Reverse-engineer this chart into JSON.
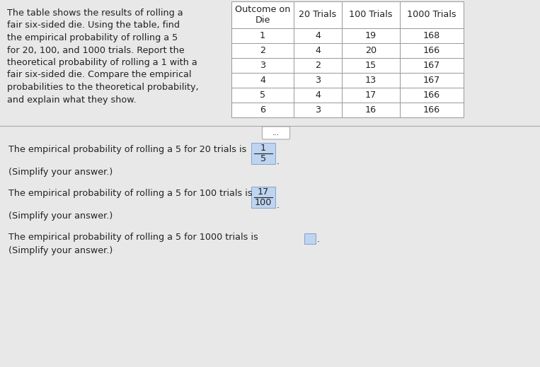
{
  "bg_color": "#e8e8e8",
  "left_text_lines": [
    "The table shows the results of rolling a",
    "fair six-sided die. Using the table, find",
    "the empirical probability of rolling a 5",
    "for 20, 100, and 1000 trials. Report the",
    "theoretical probability of rolling a 1 with a",
    "fair six-sided die. Compare the empirical",
    "probabilities to the theoretical probability,",
    "and explain what they show."
  ],
  "table_headers": [
    "Outcome on\nDie",
    "20 Trials",
    "100 Trials",
    "1000 Trials"
  ],
  "table_rows": [
    [
      "1",
      "4",
      "19",
      "168"
    ],
    [
      "2",
      "4",
      "20",
      "166"
    ],
    [
      "3",
      "2",
      "15",
      "167"
    ],
    [
      "4",
      "3",
      "13",
      "167"
    ],
    [
      "5",
      "4",
      "17",
      "166"
    ],
    [
      "6",
      "3",
      "16",
      "166"
    ]
  ],
  "line1": "The empirical probability of rolling a 5 for 20 trials is",
  "frac1_num": "1",
  "frac1_den": "5",
  "simplify1": "(Simplify your answer.)",
  "line2": "The empirical probability of rolling a 5 for 100 trials is",
  "frac2_num": "17",
  "frac2_den": "100",
  "simplify2": "(Simplify your answer.)",
  "line3": "The empirical probability of rolling a 5 for 1000 trials is",
  "simplify3": "(Simplify your answer.)",
  "divider_dots": "...",
  "text_color": "#222222",
  "frac_box_color": "#bed4f0",
  "frac_box_edge": "#7799cc",
  "table_line_color": "#999999",
  "divider_line_color": "#aaaaaa"
}
